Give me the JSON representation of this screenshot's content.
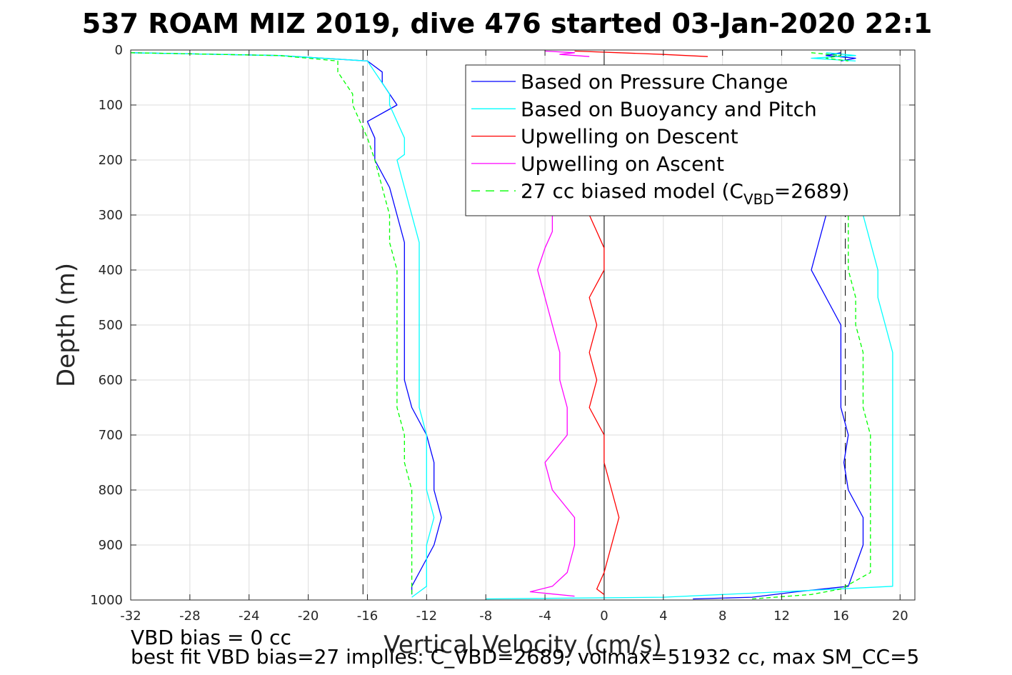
{
  "chart_data": {
    "type": "line",
    "title": "537 ROAM MIZ 2019, dive 476 started 03-Jan-2020 22:1",
    "xlabel": "Vertical Velocity (cm/s)",
    "ylabel": "Depth (m)",
    "xlim": [
      -32,
      21
    ],
    "ylim": [
      1000,
      0
    ],
    "y_reversed": true,
    "grid": true,
    "legend_position": "top-right",
    "xticks": [
      -32,
      -28,
      -24,
      -20,
      -16,
      -12,
      -8,
      -4,
      0,
      4,
      8,
      12,
      16,
      20
    ],
    "yticks": [
      0,
      100,
      200,
      300,
      400,
      500,
      600,
      700,
      800,
      900,
      1000
    ],
    "reference_lines": [
      {
        "x": -16.3,
        "style": "dashed",
        "color": "#000000"
      },
      {
        "x": 16.3,
        "style": "dashed",
        "color": "#000000"
      },
      {
        "x": 0,
        "style": "solid",
        "color": "#000000"
      }
    ],
    "series": [
      {
        "name": "Based on Pressure Change",
        "color": "#0000ff",
        "style": "solid",
        "segments": [
          {
            "depth": [
              5,
              10,
              20,
              40,
              60,
              80,
              100,
              130,
              160,
              200,
              250,
              300,
              350,
              400,
              450,
              500,
              550,
              600,
              650,
              700,
              750,
              800,
              850,
              900,
              950,
              975,
              990
            ],
            "velocity": [
              -32,
              -22,
              -16,
              -15,
              -15,
              -14.5,
              -14,
              -16,
              -15.5,
              -15.5,
              -14.5,
              -14,
              -13.5,
              -13.5,
              -13.5,
              -13.5,
              -13.5,
              -13.5,
              -13,
              -12,
              -11.5,
              -11.5,
              -11,
              -11.5,
              -12.5,
              -13,
              -13
            ]
          },
          {
            "depth": [
              998,
              995,
              985,
              975,
              900,
              850,
              800,
              750,
              700,
              650,
              600,
              550,
              500,
              450,
              400,
              350,
              300
            ],
            "velocity": [
              6,
              10,
              13,
              16.5,
              17.5,
              17.5,
              16.5,
              16.2,
              16.5,
              16,
              16,
              16,
              16,
              15,
              14,
              14.5,
              15
            ]
          },
          {
            "depth": [
              5,
              10,
              15,
              20
            ],
            "velocity": [
              16,
              15,
              17,
              16
            ]
          }
        ]
      },
      {
        "name": "Based on Buoyancy and Pitch",
        "color": "#00ffff",
        "style": "solid",
        "segments": [
          {
            "depth": [
              5,
              10,
              20,
              40,
              60,
              80,
              100,
              130,
              160,
              190,
              200,
              250,
              300,
              350,
              400,
              450,
              500,
              550,
              600,
              650,
              700,
              750,
              800,
              850,
              900,
              950,
              975,
              995
            ],
            "velocity": [
              -32,
              -22,
              -16,
              -15.5,
              -15,
              -14.5,
              -14.5,
              -14,
              -13.5,
              -13.5,
              -14,
              -13.5,
              -13,
              -12.5,
              -12.5,
              -12.5,
              -12.5,
              -12.5,
              -12.5,
              -12.5,
              -12,
              -12,
              -12,
              -11.5,
              -12,
              -12,
              -12,
              -13
            ]
          },
          {
            "depth": [
              998,
              995,
              985,
              975,
              950,
              900,
              850,
              800,
              750,
              700,
              650,
              600,
              550,
              500,
              450,
              400,
              350,
              300
            ],
            "velocity": [
              -8,
              4,
              12,
              19.5,
              19.5,
              19.5,
              19.5,
              19.5,
              19.5,
              19.5,
              19.5,
              19.5,
              19.5,
              19,
              18.5,
              18.5,
              18,
              17.5
            ]
          },
          {
            "depth": [
              5,
              10,
              15,
              20
            ],
            "velocity": [
              15,
              17,
              14,
              17
            ]
          }
        ]
      },
      {
        "name": "Upwelling on Descent",
        "color": "#ff0000",
        "style": "solid",
        "segments": [
          {
            "depth": [
              300,
              330,
              360,
              400,
              450,
              500,
              550,
              600,
              650,
              700,
              750,
              800,
              850,
              900,
              950,
              980,
              990
            ],
            "velocity": [
              -1,
              -0.5,
              0,
              0,
              -1,
              -0.5,
              -1,
              -0.5,
              -1,
              0,
              0,
              0.5,
              1,
              0.5,
              0,
              -0.5,
              0
            ]
          },
          {
            "depth": [
              2,
              5,
              8,
              12
            ],
            "velocity": [
              -2,
              1,
              4,
              7
            ]
          }
        ]
      },
      {
        "name": "Upwelling on Ascent",
        "color": "#ff00ff",
        "style": "solid",
        "segments": [
          {
            "depth": [
              300,
              330,
              360,
              400,
              450,
              500,
              550,
              600,
              650,
              700,
              750,
              800,
              850,
              900,
              950,
              975,
              985,
              993
            ],
            "velocity": [
              -3.5,
              -3.5,
              -4,
              -4.5,
              -4,
              -3.5,
              -3,
              -3,
              -2.5,
              -2.5,
              -4,
              -3.5,
              -2,
              -2,
              -2.5,
              -3.5,
              -5,
              -2
            ]
          },
          {
            "depth": [
              2,
              5,
              8,
              12
            ],
            "velocity": [
              -4,
              -2,
              -3,
              -1
            ]
          }
        ]
      },
      {
        "name": "27 cc biased model (C_VBD=2689)",
        "color": "#00ff00",
        "style": "dashed",
        "segments": [
          {
            "depth": [
              5,
              10,
              20,
              40,
              60,
              80,
              100,
              130,
              160,
              200,
              250,
              300,
              350,
              400,
              450,
              500,
              550,
              600,
              650,
              700,
              750,
              800,
              850,
              900,
              950,
              990
            ],
            "velocity": [
              -32,
              -22,
              -18,
              -18,
              -17.5,
              -17,
              -17,
              -16.5,
              -16,
              -15.5,
              -15,
              -14.5,
              -14.5,
              -14,
              -14,
              -14,
              -14,
              -14,
              -14,
              -13.5,
              -13.5,
              -13,
              -13,
              -13,
              -13,
              -13
            ]
          },
          {
            "depth": [
              998,
              990,
              980,
              950,
              900,
              850,
              800,
              750,
              700,
              650,
              600,
              550,
              500,
              450,
              400,
              350,
              300
            ],
            "velocity": [
              10,
              14,
              16,
              18,
              18,
              18,
              18,
              18,
              18,
              17.5,
              17.5,
              17.5,
              17,
              17,
              16.5,
              16.5,
              16.5
            ]
          },
          {
            "depth": [
              5,
              10,
              15,
              20
            ],
            "velocity": [
              14,
              16,
              15,
              16.5
            ]
          }
        ]
      }
    ],
    "legend": {
      "entries": [
        {
          "label": "Based on Pressure Change",
          "color": "#0000ff",
          "style": "solid"
        },
        {
          "label": "Based on Buoyancy and Pitch",
          "color": "#00ffff",
          "style": "solid"
        },
        {
          "label": "Upwelling on Descent",
          "color": "#ff0000",
          "style": "solid"
        },
        {
          "label": "Upwelling on Ascent",
          "color": "#ff00ff",
          "style": "solid"
        },
        {
          "label_prefix": "27 cc biased model (C",
          "label_sub": "VBD",
          "label_suffix": "=2689)",
          "color": "#00ff00",
          "style": "dashed"
        }
      ]
    },
    "annotations": [
      "VBD bias = 0 cc",
      "best fit VBD bias=27 implies: C_VBD=2689, volmax=51932 cc, max SM_CC=5"
    ]
  }
}
